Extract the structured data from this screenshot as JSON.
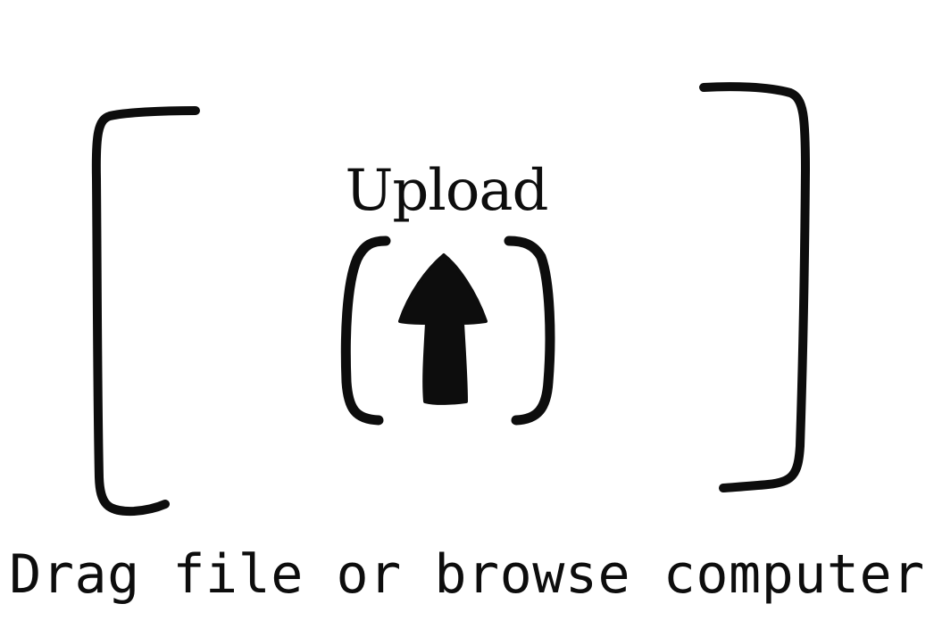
{
  "upload": {
    "title": "Upload",
    "helper_text": "Drag file or browse computer",
    "icon": "upload-arrow-icon",
    "ink_color": "#0d0d0d",
    "background_color": "#ffffff"
  }
}
